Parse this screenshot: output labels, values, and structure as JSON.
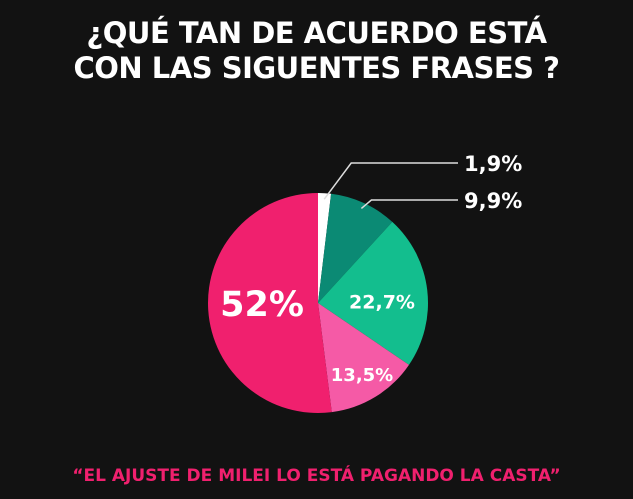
{
  "header": {
    "title_line1": "¿QUÉ TAN DE ACUERDO ESTÁ",
    "title_line2": "CON LAS SIGUENTES FRASES ?"
  },
  "caption": "“EL AJUSTE DE MILEI LO ESTÁ PAGANDO  LA CASTA”",
  "chart_data": {
    "type": "pie",
    "title": "¿QUÉ TAN DE ACUERDO ESTÁ CON LAS SIGUENTES FRASES ?",
    "start": "top",
    "direction": "clockwise",
    "slices": [
      {
        "value": 1.9,
        "label": "1,9%",
        "color": "#ffffff",
        "label_position": "outside"
      },
      {
        "value": 9.9,
        "label": "9,9%",
        "color": "#0b8a74",
        "label_position": "outside"
      },
      {
        "value": 22.7,
        "label": "22,7%",
        "color": "#13be8e",
        "label_position": "inside"
      },
      {
        "value": 13.5,
        "label": "13,5%",
        "color": "#f55aa6",
        "label_position": "inside"
      },
      {
        "value": 52,
        "label": "52%",
        "color": "#f0206e",
        "label_position": "inside"
      }
    ]
  }
}
